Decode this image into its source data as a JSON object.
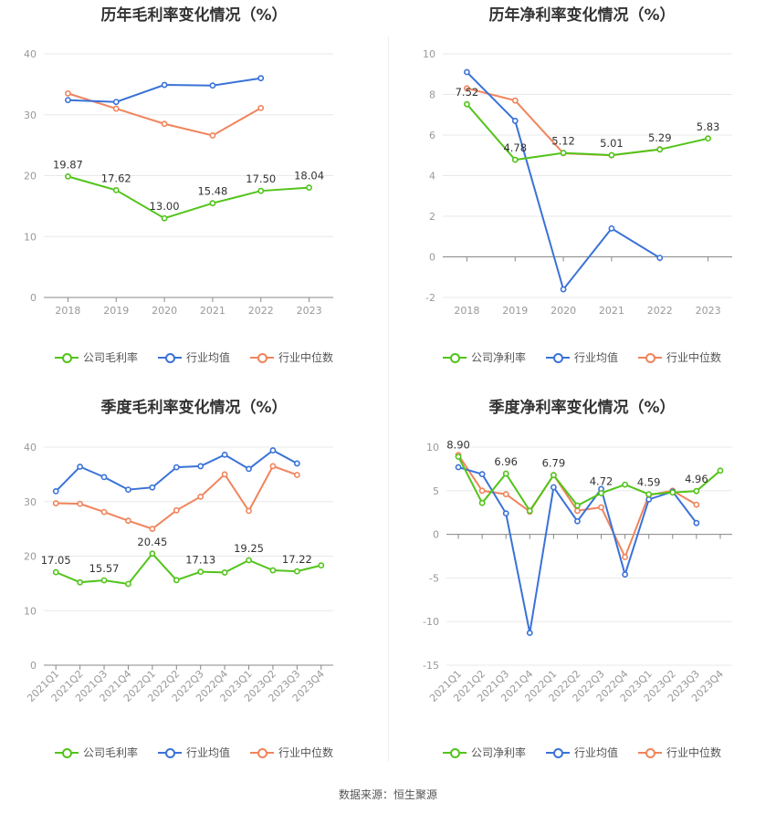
{
  "source_text": "数据来源：恒生聚源",
  "series_colors": {
    "company": "#52c41a",
    "avg": "#3a72d8",
    "median": "#f0845c"
  },
  "chart_data": [
    {
      "type": "line",
      "title": "历年毛利率变化情况（%）",
      "x": [
        "2018",
        "2019",
        "2020",
        "2021",
        "2022",
        "2023"
      ],
      "ylim": [
        0,
        40
      ],
      "yticks": [
        0,
        10,
        20,
        30,
        40
      ],
      "grid": true,
      "legend_position": "bottom",
      "series": [
        {
          "name": "公司毛利率",
          "values": [
            19.87,
            17.62,
            13.0,
            15.48,
            17.5,
            18.04
          ]
        },
        {
          "name": "行业均值",
          "values": [
            32.4,
            32.1,
            34.9,
            34.8,
            36.0,
            null
          ]
        },
        {
          "name": "行业中位数",
          "values": [
            33.5,
            31.0,
            28.5,
            26.6,
            31.1,
            null
          ]
        }
      ],
      "data_labels": [
        "19.87",
        "17.62",
        "13.00",
        "15.48",
        "17.50",
        "18.04"
      ]
    },
    {
      "type": "line",
      "title": "历年净利率变化情况（%）",
      "x": [
        "2018",
        "2019",
        "2020",
        "2021",
        "2022",
        "2023"
      ],
      "ylim": [
        -2,
        10
      ],
      "yticks": [
        -2,
        0,
        2,
        4,
        6,
        8,
        10
      ],
      "grid": true,
      "legend_position": "bottom",
      "series": [
        {
          "name": "公司净利率",
          "values": [
            7.52,
            4.78,
            5.12,
            5.01,
            5.29,
            5.83
          ]
        },
        {
          "name": "行业均值",
          "values": [
            9.1,
            6.7,
            -1.6,
            1.4,
            -0.05,
            null
          ]
        },
        {
          "name": "行业中位数",
          "values": [
            8.3,
            7.7,
            5.1,
            5.0,
            5.3,
            null
          ]
        }
      ],
      "data_labels": [
        "7.52",
        "4.78",
        "5.12",
        "5.01",
        "5.29",
        "5.83"
      ]
    },
    {
      "type": "line",
      "title": "季度毛利率变化情况（%）",
      "x": [
        "2021Q1",
        "2021Q2",
        "2021Q3",
        "2021Q4",
        "2022Q1",
        "2022Q2",
        "2022Q3",
        "2022Q4",
        "2023Q1",
        "2023Q2",
        "2023Q3",
        "2023Q4"
      ],
      "ylim": [
        0,
        40
      ],
      "yticks": [
        0,
        10,
        20,
        30,
        40
      ],
      "grid": true,
      "legend_position": "bottom",
      "series": [
        {
          "name": "公司毛利率",
          "values": [
            17.05,
            15.2,
            15.57,
            14.9,
            20.45,
            15.6,
            17.13,
            17.0,
            19.25,
            17.4,
            17.22,
            18.3
          ]
        },
        {
          "name": "行业均值",
          "values": [
            31.9,
            36.4,
            34.5,
            32.2,
            32.6,
            36.3,
            36.5,
            38.6,
            36.0,
            39.4,
            37.0,
            null
          ]
        },
        {
          "name": "行业中位数",
          "values": [
            29.7,
            29.6,
            28.1,
            26.5,
            25.0,
            28.4,
            30.9,
            35.0,
            28.3,
            36.5,
            34.9,
            null
          ]
        }
      ],
      "data_labels": [
        "17.05",
        "",
        "15.57",
        "",
        "20.45",
        "",
        "17.13",
        "",
        "19.25",
        "",
        "17.22",
        ""
      ]
    },
    {
      "type": "line",
      "title": "季度净利率变化情况（%）",
      "x": [
        "2021Q1",
        "2021Q2",
        "2021Q3",
        "2021Q4",
        "2022Q1",
        "2022Q2",
        "2022Q3",
        "2022Q4",
        "2023Q1",
        "2023Q2",
        "2023Q3",
        "2023Q4"
      ],
      "ylim": [
        -15,
        10
      ],
      "yticks": [
        -15,
        -10,
        -5,
        0,
        5,
        10
      ],
      "grid": true,
      "legend_position": "bottom",
      "series": [
        {
          "name": "公司净利率",
          "values": [
            8.9,
            3.6,
            6.96,
            2.7,
            6.79,
            3.3,
            4.72,
            5.7,
            4.59,
            4.8,
            4.96,
            7.3
          ]
        },
        {
          "name": "行业均值",
          "values": [
            7.7,
            6.9,
            2.4,
            -11.3,
            5.4,
            1.5,
            5.2,
            -4.6,
            4.0,
            4.9,
            1.3,
            null
          ]
        },
        {
          "name": "行业中位数",
          "values": [
            9.1,
            5.0,
            4.6,
            2.6,
            6.8,
            2.7,
            3.1,
            -2.6,
            4.5,
            5.0,
            3.4,
            null
          ]
        }
      ],
      "data_labels": [
        "8.90",
        "",
        "6.96",
        "",
        "6.79",
        "",
        "4.72",
        "",
        "4.59",
        "",
        "4.96",
        ""
      ]
    }
  ]
}
